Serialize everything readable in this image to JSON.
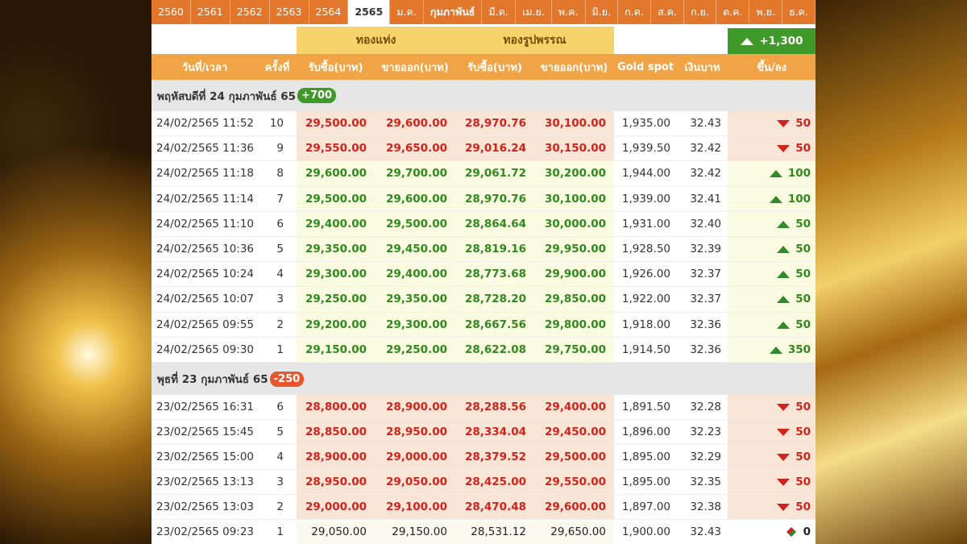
{
  "tabs": {
    "years": [
      "2560",
      "2561",
      "2562",
      "2563",
      "2564",
      "2565"
    ],
    "selected_year": 5,
    "months": [
      "ม.ค.",
      "กุมภาพันธ์",
      "มี.ค.",
      "เม.ย.",
      "พ.ค.",
      "มิ.ย.",
      "ก.ค.",
      "ส.ค.",
      "ก.ย.",
      "ต.ค.",
      "พ.ย.",
      "ธ.ค."
    ],
    "selected_month": 1
  },
  "table": {
    "groups": [
      "ทองแท่ง",
      "ทองรูปพรรณ"
    ],
    "total_change": "+1,300",
    "columns": [
      "วันที่/เวลา",
      "ครั้งที่",
      "รับซื้อ(บาท)",
      "ขายออก(บาท)",
      "รับซื้อ(บาท)",
      "ขายออก(บาท)",
      "Gold spot",
      "เงินบาท",
      "ขึ้น/ลง"
    ],
    "sections": [
      {
        "title": "พฤหัสบดีที่ 24 กุมภาพันธ์ 65",
        "change": "+700",
        "trend": "up",
        "rows": [
          {
            "trend": "down",
            "cells": [
              "24/02/2565 11:52",
              "10",
              "29,500.00",
              "29,600.00",
              "28,970.76",
              "30,100.00",
              "1,935.00",
              "32.43",
              "50"
            ]
          },
          {
            "trend": "down",
            "cells": [
              "24/02/2565 11:36",
              "9",
              "29,550.00",
              "29,650.00",
              "29,016.24",
              "30,150.00",
              "1,939.50",
              "32.42",
              "50"
            ]
          },
          {
            "trend": "up",
            "cells": [
              "24/02/2565 11:18",
              "8",
              "29,600.00",
              "29,700.00",
              "29,061.72",
              "30,200.00",
              "1,944.00",
              "32.42",
              "100"
            ]
          },
          {
            "trend": "up",
            "cells": [
              "24/02/2565 11:14",
              "7",
              "29,500.00",
              "29,600.00",
              "28,970.76",
              "30,100.00",
              "1,939.00",
              "32.41",
              "100"
            ]
          },
          {
            "trend": "up",
            "cells": [
              "24/02/2565 11:10",
              "6",
              "29,400.00",
              "29,500.00",
              "28,864.64",
              "30,000.00",
              "1,931.00",
              "32.40",
              "50"
            ]
          },
          {
            "trend": "up",
            "cells": [
              "24/02/2565 10:36",
              "5",
              "29,350.00",
              "29,450.00",
              "28,819.16",
              "29,950.00",
              "1,928.50",
              "32.39",
              "50"
            ]
          },
          {
            "trend": "up",
            "cells": [
              "24/02/2565 10:24",
              "4",
              "29,300.00",
              "29,400.00",
              "28,773.68",
              "29,900.00",
              "1,926.00",
              "32.37",
              "50"
            ]
          },
          {
            "trend": "up",
            "cells": [
              "24/02/2565 10:07",
              "3",
              "29,250.00",
              "29,350.00",
              "28,728.20",
              "29,850.00",
              "1,922.00",
              "32.37",
              "50"
            ]
          },
          {
            "trend": "up",
            "cells": [
              "24/02/2565 09:55",
              "2",
              "29,200.00",
              "29,300.00",
              "28,667.56",
              "29,800.00",
              "1,918.00",
              "32.36",
              "50"
            ]
          },
          {
            "trend": "up",
            "cells": [
              "24/02/2565 09:30",
              "1",
              "29,150.00",
              "29,250.00",
              "28,622.08",
              "29,750.00",
              "1,914.50",
              "32.36",
              "350"
            ]
          }
        ]
      },
      {
        "title": "พุธที่ 23 กุมภาพันธ์ 65",
        "change": "-250",
        "trend": "down",
        "rows": [
          {
            "trend": "down",
            "cells": [
              "23/02/2565 16:31",
              "6",
              "28,800.00",
              "28,900.00",
              "28,288.56",
              "29,400.00",
              "1,891.50",
              "32.28",
              "50"
            ]
          },
          {
            "trend": "down",
            "cells": [
              "23/02/2565 15:45",
              "5",
              "28,850.00",
              "28,950.00",
              "28,334.04",
              "29,450.00",
              "1,896.00",
              "32.23",
              "50"
            ]
          },
          {
            "trend": "down",
            "cells": [
              "23/02/2565 15:00",
              "4",
              "28,900.00",
              "29,000.00",
              "28,379.52",
              "29,500.00",
              "1,895.00",
              "32.29",
              "50"
            ]
          },
          {
            "trend": "down",
            "cells": [
              "23/02/2565 13:13",
              "3",
              "28,950.00",
              "29,050.00",
              "28,425.00",
              "29,550.00",
              "1,895.00",
              "32.35",
              "50"
            ]
          },
          {
            "trend": "down",
            "cells": [
              "23/02/2565 13:03",
              "2",
              "29,000.00",
              "29,100.00",
              "28,470.48",
              "29,600.00",
              "1,897.00",
              "32.38",
              "50"
            ]
          },
          {
            "trend": "flat",
            "cells": [
              "23/02/2565 09:23",
              "1",
              "29,050.00",
              "29,150.00",
              "28,531.12",
              "29,650.00",
              "1,900.00",
              "32.43",
              "0"
            ]
          }
        ]
      }
    ]
  }
}
